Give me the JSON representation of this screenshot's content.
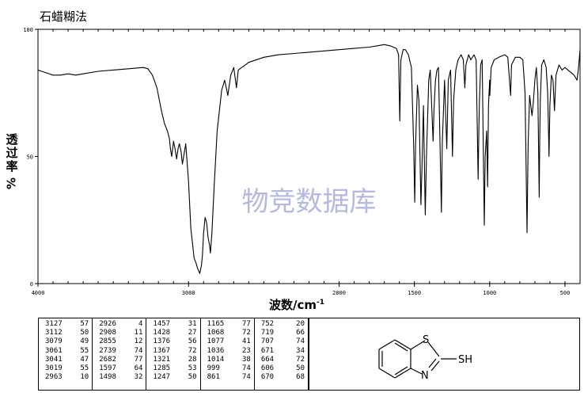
{
  "chart_data": {
    "type": "line",
    "title": "石蜡糊法",
    "ylabel_chars": [
      "透",
      "过",
      "率"
    ],
    "ylabel_unit": "%",
    "xlabel": "波数/cm",
    "xlabel_sup": "-1",
    "watermark": "物竞数据库",
    "xlim": [
      4000,
      400
    ],
    "ylim": [
      0,
      100
    ],
    "xticks": [
      {
        "v": 4000,
        "label": "4000"
      },
      {
        "v": 3000,
        "label": "3000"
      },
      {
        "v": 2000,
        "label": "2000"
      },
      {
        "v": 1500,
        "label": "1500"
      },
      {
        "v": 1000,
        "label": "1000"
      },
      {
        "v": 500,
        "label": "500"
      }
    ],
    "yticks": [
      {
        "v": 100,
        "label": "100"
      },
      {
        "v": 50,
        "label": "50"
      },
      {
        "v": 0,
        "label": "0"
      }
    ],
    "series": [
      {
        "line_color": "#000000",
        "points": [
          [
            4000,
            84
          ],
          [
            3950,
            83
          ],
          [
            3900,
            82
          ],
          [
            3850,
            82
          ],
          [
            3800,
            82.5
          ],
          [
            3750,
            82
          ],
          [
            3700,
            82.5
          ],
          [
            3600,
            83.5
          ],
          [
            3500,
            84
          ],
          [
            3400,
            84.5
          ],
          [
            3300,
            85
          ],
          [
            3270,
            84.5
          ],
          [
            3240,
            82
          ],
          [
            3210,
            77
          ],
          [
            3180,
            68
          ],
          [
            3160,
            63
          ],
          [
            3140,
            60
          ],
          [
            3127,
            57
          ],
          [
            3120,
            53
          ],
          [
            3112,
            50
          ],
          [
            3100,
            56
          ],
          [
            3090,
            53
          ],
          [
            3079,
            49
          ],
          [
            3070,
            53
          ],
          [
            3061,
            55
          ],
          [
            3050,
            52
          ],
          [
            3041,
            47
          ],
          [
            3030,
            51
          ],
          [
            3019,
            55
          ],
          [
            3000,
            40
          ],
          [
            2985,
            22
          ],
          [
            2963,
            10
          ],
          [
            2950,
            8
          ],
          [
            2940,
            6
          ],
          [
            2926,
            4
          ],
          [
            2915,
            7
          ],
          [
            2908,
            11
          ],
          [
            2900,
            20
          ],
          [
            2890,
            26
          ],
          [
            2880,
            24
          ],
          [
            2870,
            18
          ],
          [
            2860,
            15
          ],
          [
            2855,
            12
          ],
          [
            2845,
            20
          ],
          [
            2830,
            38
          ],
          [
            2810,
            60
          ],
          [
            2780,
            76
          ],
          [
            2760,
            80
          ],
          [
            2739,
            74
          ],
          [
            2720,
            82
          ],
          [
            2700,
            85
          ],
          [
            2682,
            77
          ],
          [
            2670,
            84
          ],
          [
            2600,
            87
          ],
          [
            2500,
            89
          ],
          [
            2400,
            90
          ],
          [
            2300,
            90.5
          ],
          [
            2200,
            91
          ],
          [
            2100,
            91.5
          ],
          [
            2000,
            92
          ],
          [
            1900,
            92.5
          ],
          [
            1800,
            93
          ],
          [
            1750,
            93.5
          ],
          [
            1700,
            94
          ],
          [
            1660,
            93.5
          ],
          [
            1640,
            93
          ],
          [
            1620,
            92.5
          ],
          [
            1605,
            90
          ],
          [
            1597,
            64
          ],
          [
            1590,
            88
          ],
          [
            1575,
            92
          ],
          [
            1560,
            92
          ],
          [
            1540,
            90
          ],
          [
            1520,
            85
          ],
          [
            1505,
            55
          ],
          [
            1498,
            32
          ],
          [
            1492,
            55
          ],
          [
            1480,
            78
          ],
          [
            1470,
            72
          ],
          [
            1457,
            31
          ],
          [
            1450,
            45
          ],
          [
            1440,
            70
          ],
          [
            1428,
            27
          ],
          [
            1420,
            50
          ],
          [
            1405,
            80
          ],
          [
            1395,
            84
          ],
          [
            1376,
            56
          ],
          [
            1370,
            68
          ],
          [
            1367,
            72
          ],
          [
            1360,
            80
          ],
          [
            1350,
            84
          ],
          [
            1340,
            85
          ],
          [
            1321,
            28
          ],
          [
            1315,
            55
          ],
          [
            1300,
            80
          ],
          [
            1285,
            53
          ],
          [
            1275,
            80
          ],
          [
            1260,
            84
          ],
          [
            1247,
            50
          ],
          [
            1240,
            72
          ],
          [
            1225,
            84
          ],
          [
            1210,
            88
          ],
          [
            1190,
            90
          ],
          [
            1175,
            88
          ],
          [
            1165,
            77
          ],
          [
            1158,
            86
          ],
          [
            1140,
            90
          ],
          [
            1125,
            88
          ],
          [
            1105,
            90
          ],
          [
            1090,
            88
          ],
          [
            1077,
            41
          ],
          [
            1072,
            60
          ],
          [
            1068,
            72
          ],
          [
            1060,
            86
          ],
          [
            1050,
            88
          ],
          [
            1036,
            23
          ],
          [
            1030,
            50
          ],
          [
            1020,
            60
          ],
          [
            1014,
            38
          ],
          [
            1008,
            70
          ],
          [
            1000,
            80
          ],
          [
            999,
            74
          ],
          [
            990,
            85
          ],
          [
            970,
            88
          ],
          [
            940,
            89
          ],
          [
            900,
            90
          ],
          [
            880,
            89
          ],
          [
            861,
            74
          ],
          [
            855,
            86
          ],
          [
            830,
            89
          ],
          [
            800,
            89
          ],
          [
            780,
            88
          ],
          [
            765,
            75
          ],
          [
            752,
            20
          ],
          [
            745,
            55
          ],
          [
            735,
            74
          ],
          [
            719,
            66
          ],
          [
            712,
            70
          ],
          [
            707,
            74
          ],
          [
            700,
            80
          ],
          [
            690,
            85
          ],
          [
            680,
            75
          ],
          [
            671,
            34
          ],
          [
            668,
            55
          ],
          [
            664,
            72
          ],
          [
            655,
            86
          ],
          [
            640,
            88
          ],
          [
            625,
            85
          ],
          [
            615,
            75
          ],
          [
            606,
            50
          ],
          [
            600,
            70
          ],
          [
            590,
            82
          ],
          [
            580,
            80
          ],
          [
            570,
            68
          ],
          [
            560,
            82
          ],
          [
            540,
            86
          ],
          [
            520,
            84
          ],
          [
            500,
            85
          ],
          [
            480,
            84
          ],
          [
            460,
            83
          ],
          [
            440,
            82
          ],
          [
            420,
            80
          ],
          [
            410,
            85
          ],
          [
            400,
            92
          ]
        ]
      }
    ]
  },
  "peak_table": [
    [
      [
        "3127",
        "57"
      ],
      [
        "3112",
        "50"
      ],
      [
        "3079",
        "49"
      ],
      [
        "3061",
        "55"
      ],
      [
        "3041",
        "47"
      ],
      [
        "3019",
        "55"
      ],
      [
        "2963",
        "10"
      ]
    ],
    [
      [
        "2926",
        "4"
      ],
      [
        "2908",
        "11"
      ],
      [
        "2855",
        "12"
      ],
      [
        "2739",
        "74"
      ],
      [
        "2682",
        "77"
      ],
      [
        "1597",
        "64"
      ],
      [
        "1498",
        "32"
      ]
    ],
    [
      [
        "1457",
        "31"
      ],
      [
        "1428",
        "27"
      ],
      [
        "1376",
        "56"
      ],
      [
        "1367",
        "72"
      ],
      [
        "1321",
        "28"
      ],
      [
        "1285",
        "53"
      ],
      [
        "1247",
        "50"
      ]
    ],
    [
      [
        "1165",
        "77"
      ],
      [
        "1068",
        "72"
      ],
      [
        "1077",
        "41"
      ],
      [
        "1036",
        "23"
      ],
      [
        "1014",
        "38"
      ],
      [
        "999",
        "74"
      ],
      [
        "861",
        "74"
      ]
    ],
    [
      [
        "752",
        "20"
      ],
      [
        "719",
        "66"
      ],
      [
        "707",
        "74"
      ],
      [
        "671",
        "34"
      ],
      [
        "664",
        "72"
      ],
      [
        "606",
        "50"
      ],
      [
        "670",
        "68"
      ]
    ]
  ],
  "structure": {
    "labels": {
      "s": "S",
      "n": "N",
      "sh": "SH"
    }
  }
}
